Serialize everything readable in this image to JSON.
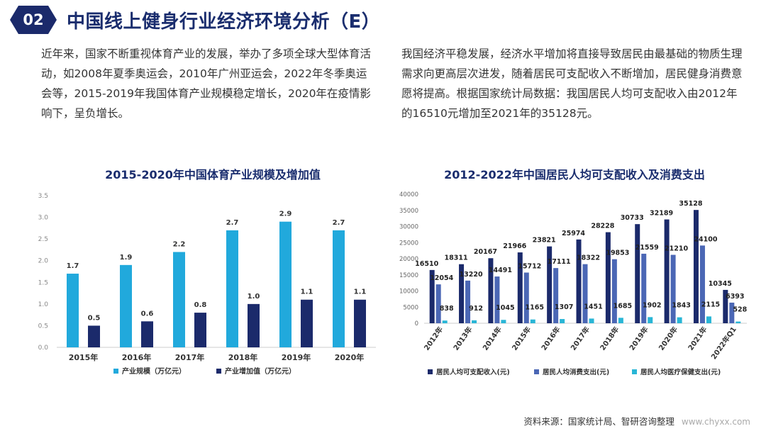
{
  "header": {
    "badge": "02",
    "title": "中国线上健身行业经济环境分析（E）"
  },
  "paragraphs": {
    "left": "近年来，国家不断重视体育产业的发展，举办了多项全球大型体育活动，如2008年夏季奥运会，2010年广州亚运会，2022年冬季奥运会等，2015-2019年我国体育产业规模稳定增长，2020年在疫情影响下，呈负增长。",
    "right": "我国经济平稳发展，经济水平增加将直接导致居民由最基础的物质生理需求向更高层次进发，随着居民可支配收入不断增加，居民健身消费意愿将提高。根据国家统计局数据：我国居民人均可支配收入由2012年的16510元增加至2021年的35128元。"
  },
  "colors": {
    "dark_navy": "#1b2a6b",
    "light_blue": "#21a9dc",
    "mid_blue": "#4b67b5",
    "cyan": "#29b6d6"
  },
  "chart_data": [
    {
      "type": "bar",
      "title": "2015-2020年中国体育产业规模及增加值",
      "categories": [
        "2015年",
        "2016年",
        "2017年",
        "2018年",
        "2019年",
        "2020年"
      ],
      "series": [
        {
          "name": "产业规模（万亿元）",
          "values": [
            1.7,
            1.9,
            2.2,
            2.7,
            2.9,
            2.7
          ],
          "labels": [
            "1.7",
            "1.9",
            "2.2",
            "2.7",
            "2.9",
            "2.7"
          ]
        },
        {
          "name": "产业增加值（万亿元）",
          "values": [
            0.5,
            0.6,
            0.8,
            1.0,
            1.1,
            1.1
          ],
          "labels": [
            "0.5",
            "0.6",
            "0.8",
            "1.0",
            "1.1",
            "1.1"
          ]
        }
      ],
      "ylim": [
        0,
        3.5
      ],
      "yticks": [
        "0.0",
        "0.5",
        "1.0",
        "1.5",
        "2.0",
        "2.5",
        "3.0",
        "3.5"
      ],
      "legend": "bottom"
    },
    {
      "type": "bar",
      "title": "2012-2022年中国居民人均可支配收入及消费支出",
      "categories": [
        "2012年",
        "2013年",
        "2014年",
        "2015年",
        "2016年",
        "2017年",
        "2018年",
        "2019年",
        "2020年",
        "2021年",
        "2022年Q1"
      ],
      "series": [
        {
          "name": "居民人均可支配收入(元)",
          "values": [
            16510,
            18311,
            20167,
            21966,
            23821,
            25974,
            28228,
            30733,
            32189,
            35128,
            10345
          ]
        },
        {
          "name": "居民人均消费支出(元)",
          "values": [
            12054,
            13220,
            14491,
            15712,
            17111,
            18322,
            19853,
            21559,
            21210,
            24100,
            6393
          ]
        },
        {
          "name": "居民人均医疗保健支出(元)",
          "values": [
            838,
            912,
            1045,
            1165,
            1307,
            1451,
            1685,
            1902,
            1843,
            2115,
            528
          ]
        }
      ],
      "ylim": [
        0,
        40000
      ],
      "yticks": [
        "0",
        "5000",
        "10000",
        "15000",
        "20000",
        "25000",
        "30000",
        "35000",
        "40000"
      ],
      "legend": "bottom"
    }
  ],
  "source": {
    "label": "资料来源：国家统计局、智研咨询整理",
    "url": "www.chyxx.com"
  }
}
